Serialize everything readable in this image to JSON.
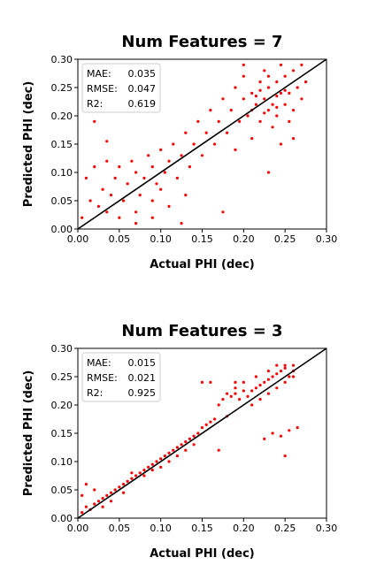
{
  "chart_data": [
    {
      "type": "scatter",
      "title": "Num Features = 7",
      "xlabel": "Actual PHI (dec)",
      "ylabel": "Predicted PHI (dec)",
      "xlim": [
        0,
        0.3
      ],
      "ylim": [
        0,
        0.3
      ],
      "xticks": [
        "0.00",
        "0.05",
        "0.10",
        "0.15",
        "0.20",
        "0.25",
        "0.30"
      ],
      "yticks": [
        "0.00",
        "0.05",
        "0.10",
        "0.15",
        "0.20",
        "0.25",
        "0.30"
      ],
      "point_color": "#ff0000",
      "reference_line": {
        "x": [
          0,
          0.3
        ],
        "y": [
          0,
          0.3
        ],
        "color": "#000000"
      },
      "stats": [
        {
          "label": "MAE:",
          "value": "0.035"
        },
        {
          "label": "RMSE:",
          "value": "0.047"
        },
        {
          "label": "R2:",
          "value": "0.619"
        }
      ],
      "points": [
        [
          0.005,
          0.02
        ],
        [
          0.01,
          0.09
        ],
        [
          0.015,
          0.05
        ],
        [
          0.02,
          0.11
        ],
        [
          0.025,
          0.04
        ],
        [
          0.03,
          0.07
        ],
        [
          0.035,
          0.03
        ],
        [
          0.035,
          0.12
        ],
        [
          0.04,
          0.06
        ],
        [
          0.045,
          0.09
        ],
        [
          0.05,
          0.02
        ],
        [
          0.05,
          0.11
        ],
        [
          0.055,
          0.05
        ],
        [
          0.06,
          0.08
        ],
        [
          0.065,
          0.12
        ],
        [
          0.07,
          0.03
        ],
        [
          0.07,
          0.1
        ],
        [
          0.075,
          0.06
        ],
        [
          0.08,
          0.09
        ],
        [
          0.085,
          0.13
        ],
        [
          0.09,
          0.05
        ],
        [
          0.09,
          0.11
        ],
        [
          0.095,
          0.08
        ],
        [
          0.1,
          0.14
        ],
        [
          0.1,
          0.07
        ],
        [
          0.105,
          0.1
        ],
        [
          0.11,
          0.12
        ],
        [
          0.11,
          0.04
        ],
        [
          0.115,
          0.15
        ],
        [
          0.12,
          0.09
        ],
        [
          0.125,
          0.13
        ],
        [
          0.13,
          0.17
        ],
        [
          0.13,
          0.06
        ],
        [
          0.135,
          0.11
        ],
        [
          0.14,
          0.15
        ],
        [
          0.145,
          0.19
        ],
        [
          0.15,
          0.13
        ],
        [
          0.155,
          0.17
        ],
        [
          0.16,
          0.21
        ],
        [
          0.165,
          0.15
        ],
        [
          0.17,
          0.19
        ],
        [
          0.175,
          0.23
        ],
        [
          0.18,
          0.17
        ],
        [
          0.185,
          0.21
        ],
        [
          0.19,
          0.25
        ],
        [
          0.195,
          0.19
        ],
        [
          0.2,
          0.23
        ],
        [
          0.2,
          0.27
        ],
        [
          0.205,
          0.2
        ],
        [
          0.21,
          0.24
        ],
        [
          0.21,
          0.16
        ],
        [
          0.215,
          0.22
        ],
        [
          0.22,
          0.26
        ],
        [
          0.22,
          0.19
        ],
        [
          0.225,
          0.23
        ],
        [
          0.225,
          0.28
        ],
        [
          0.23,
          0.21
        ],
        [
          0.23,
          0.25
        ],
        [
          0.235,
          0.18
        ],
        [
          0.235,
          0.22
        ],
        [
          0.24,
          0.26
        ],
        [
          0.24,
          0.2
        ],
        [
          0.245,
          0.24
        ],
        [
          0.245,
          0.29
        ],
        [
          0.25,
          0.22
        ],
        [
          0.25,
          0.27
        ],
        [
          0.255,
          0.19
        ],
        [
          0.255,
          0.24
        ],
        [
          0.26,
          0.28
        ],
        [
          0.26,
          0.21
        ],
        [
          0.265,
          0.25
        ],
        [
          0.27,
          0.23
        ],
        [
          0.27,
          0.29
        ],
        [
          0.275,
          0.26
        ],
        [
          0.23,
          0.1
        ],
        [
          0.02,
          0.19
        ],
        [
          0.035,
          0.155
        ],
        [
          0.09,
          0.02
        ],
        [
          0.07,
          0.01
        ],
        [
          0.125,
          0.01
        ],
        [
          0.175,
          0.03
        ],
        [
          0.19,
          0.14
        ],
        [
          0.2,
          0.29
        ],
        [
          0.245,
          0.15
        ],
        [
          0.26,
          0.16
        ],
        [
          0.215,
          0.235
        ],
        [
          0.225,
          0.205
        ],
        [
          0.24,
          0.235
        ],
        [
          0.23,
          0.27
        ],
        [
          0.22,
          0.245
        ],
        [
          0.25,
          0.245
        ],
        [
          0.21,
          0.21
        ],
        [
          0.24,
          0.215
        ]
      ]
    },
    {
      "type": "scatter",
      "title": "Num Features = 3",
      "xlabel": "Actual PHI (dec)",
      "ylabel": "Predicted PHI (dec)",
      "xlim": [
        0,
        0.3
      ],
      "ylim": [
        0,
        0.3
      ],
      "xticks": [
        "0.00",
        "0.05",
        "0.10",
        "0.15",
        "0.20",
        "0.25",
        "0.30"
      ],
      "yticks": [
        "0.00",
        "0.05",
        "0.10",
        "0.15",
        "0.20",
        "0.25",
        "0.30"
      ],
      "point_color": "#ff0000",
      "reference_line": {
        "x": [
          0,
          0.3
        ],
        "y": [
          0,
          0.3
        ],
        "color": "#000000"
      },
      "stats": [
        {
          "label": "MAE:",
          "value": "0.015"
        },
        {
          "label": "RMSE:",
          "value": "0.021"
        },
        {
          "label": "R2:",
          "value": "0.925"
        }
      ],
      "points": [
        [
          0.005,
          0.01
        ],
        [
          0.01,
          0.02
        ],
        [
          0.015,
          0.015
        ],
        [
          0.02,
          0.025
        ],
        [
          0.025,
          0.03
        ],
        [
          0.03,
          0.035
        ],
        [
          0.035,
          0.04
        ],
        [
          0.04,
          0.045
        ],
        [
          0.045,
          0.05
        ],
        [
          0.05,
          0.055
        ],
        [
          0.055,
          0.06
        ],
        [
          0.06,
          0.065
        ],
        [
          0.065,
          0.07
        ],
        [
          0.07,
          0.075
        ],
        [
          0.075,
          0.08
        ],
        [
          0.08,
          0.085
        ],
        [
          0.085,
          0.09
        ],
        [
          0.09,
          0.095
        ],
        [
          0.095,
          0.1
        ],
        [
          0.1,
          0.105
        ],
        [
          0.105,
          0.11
        ],
        [
          0.11,
          0.115
        ],
        [
          0.115,
          0.12
        ],
        [
          0.12,
          0.125
        ],
        [
          0.125,
          0.13
        ],
        [
          0.13,
          0.135
        ],
        [
          0.135,
          0.14
        ],
        [
          0.14,
          0.145
        ],
        [
          0.145,
          0.15
        ],
        [
          0.15,
          0.16
        ],
        [
          0.155,
          0.165
        ],
        [
          0.16,
          0.17
        ],
        [
          0.165,
          0.175
        ],
        [
          0.17,
          0.2
        ],
        [
          0.175,
          0.21
        ],
        [
          0.18,
          0.22
        ],
        [
          0.185,
          0.215
        ],
        [
          0.19,
          0.22
        ],
        [
          0.195,
          0.21
        ],
        [
          0.2,
          0.225
        ],
        [
          0.205,
          0.215
        ],
        [
          0.21,
          0.225
        ],
        [
          0.215,
          0.23
        ],
        [
          0.22,
          0.235
        ],
        [
          0.225,
          0.24
        ],
        [
          0.23,
          0.245
        ],
        [
          0.235,
          0.25
        ],
        [
          0.24,
          0.255
        ],
        [
          0.245,
          0.26
        ],
        [
          0.25,
          0.265
        ],
        [
          0.255,
          0.25
        ],
        [
          0.26,
          0.26
        ],
        [
          0.235,
          0.15
        ],
        [
          0.245,
          0.145
        ],
        [
          0.255,
          0.155
        ],
        [
          0.265,
          0.16
        ],
        [
          0.225,
          0.14
        ],
        [
          0.25,
          0.11
        ],
        [
          0.16,
          0.24
        ],
        [
          0.15,
          0.24
        ],
        [
          0.005,
          0.04
        ],
        [
          0.01,
          0.06
        ],
        [
          0.02,
          0.05
        ],
        [
          0.03,
          0.02
        ],
        [
          0.04,
          0.03
        ],
        [
          0.055,
          0.045
        ],
        [
          0.065,
          0.08
        ],
        [
          0.08,
          0.075
        ],
        [
          0.09,
          0.085
        ],
        [
          0.1,
          0.09
        ],
        [
          0.11,
          0.1
        ],
        [
          0.12,
          0.11
        ],
        [
          0.13,
          0.12
        ],
        [
          0.14,
          0.13
        ],
        [
          0.17,
          0.12
        ],
        [
          0.18,
          0.18
        ],
        [
          0.19,
          0.24
        ],
        [
          0.21,
          0.2
        ],
        [
          0.22,
          0.21
        ],
        [
          0.24,
          0.23
        ],
        [
          0.25,
          0.24
        ],
        [
          0.26,
          0.25
        ],
        [
          0.23,
          0.26
        ],
        [
          0.24,
          0.27
        ],
        [
          0.25,
          0.27
        ],
        [
          0.26,
          0.27
        ],
        [
          0.215,
          0.25
        ],
        [
          0.2,
          0.24
        ],
        [
          0.19,
          0.23
        ],
        [
          0.23,
          0.22
        ]
      ]
    }
  ]
}
